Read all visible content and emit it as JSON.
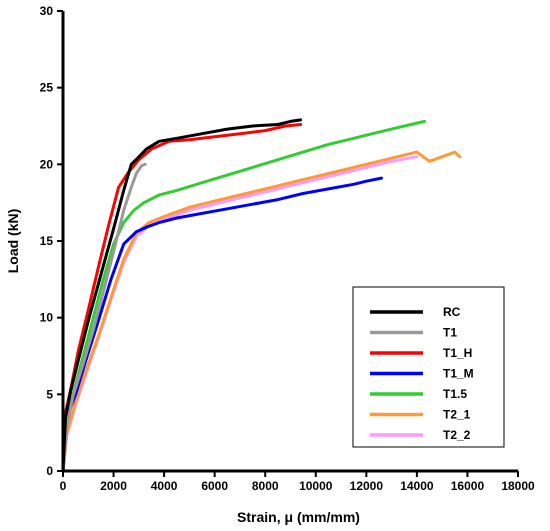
{
  "chart_data": {
    "type": "line",
    "title": "",
    "xlabel": "Strain, μ (mm/mm)",
    "ylabel": "Load (kN)",
    "xlim": [
      0,
      18000
    ],
    "ylim": [
      0,
      30
    ],
    "xticks": [
      0,
      2000,
      4000,
      6000,
      8000,
      10000,
      12000,
      14000,
      16000,
      18000
    ],
    "yticks": [
      0,
      5,
      10,
      15,
      20,
      25,
      30
    ],
    "grid": false,
    "legend_position": "bottom-right",
    "series": [
      {
        "name": "RC",
        "color": "#000000",
        "x": [
          0,
          100,
          300,
          600,
          1000,
          1500,
          2000,
          2400,
          2700,
          2950,
          3300,
          3800,
          4500,
          5500,
          6500,
          7500,
          8500,
          9000,
          9400
        ],
        "y": [
          0,
          3.5,
          5.2,
          7.2,
          9.8,
          12.8,
          15.8,
          18.3,
          20.0,
          20.4,
          21.0,
          21.5,
          21.7,
          22.0,
          22.3,
          22.5,
          22.6,
          22.8,
          22.9
        ]
      },
      {
        "name": "T1",
        "color": "#999999",
        "x": [
          0,
          150,
          400,
          800,
          1200,
          1600,
          2000,
          2400,
          2700,
          2900,
          3100,
          3250
        ],
        "y": [
          0,
          3.0,
          4.9,
          7.0,
          9.2,
          11.7,
          14.3,
          17.0,
          18.5,
          19.4,
          19.9,
          20.0
        ]
      },
      {
        "name": "T1_H",
        "color": "#ff0000",
        "x": [
          0,
          100,
          300,
          600,
          1000,
          1400,
          1800,
          2200,
          2600,
          3000,
          3500,
          4200,
          5000,
          6000,
          7000,
          8000,
          8800,
          9400
        ],
        "y": [
          0,
          3.8,
          5.3,
          7.8,
          10.5,
          13.3,
          16.0,
          18.5,
          19.5,
          20.3,
          21.0,
          21.5,
          21.6,
          21.8,
          22.0,
          22.2,
          22.5,
          22.6
        ]
      },
      {
        "name": "T1_M",
        "color": "#0000ff",
        "x": [
          0,
          150,
          500,
          900,
          1400,
          1900,
          2400,
          2900,
          3300,
          3800,
          4500,
          5500,
          6500,
          7500,
          8500,
          9500,
          10500,
          11500,
          12000,
          12600
        ],
        "y": [
          0,
          3.5,
          5.0,
          7.2,
          9.8,
          12.5,
          14.8,
          15.6,
          15.9,
          16.2,
          16.5,
          16.8,
          17.1,
          17.4,
          17.7,
          18.1,
          18.4,
          18.7,
          18.9,
          19.1
        ]
      },
      {
        "name": "T1.5",
        "color": "#33cc33",
        "x": [
          0,
          100,
          400,
          800,
          1200,
          1600,
          2000,
          2400,
          2800,
          3200,
          3800,
          4500,
          5500,
          6500,
          7500,
          8500,
          9500,
          10500,
          11500,
          12500,
          13500,
          14300
        ],
        "y": [
          0,
          3.2,
          5.0,
          7.5,
          10.0,
          12.5,
          14.8,
          16.2,
          17.0,
          17.5,
          18.0,
          18.3,
          18.8,
          19.3,
          19.8,
          20.3,
          20.8,
          21.3,
          21.7,
          22.1,
          22.5,
          22.8
        ]
      },
      {
        "name": "T2_1",
        "color": "#ff9933",
        "x": [
          0,
          150,
          500,
          900,
          1400,
          1900,
          2400,
          2900,
          3400,
          4000,
          5000,
          6000,
          7000,
          8000,
          9000,
          10000,
          11000,
          12000,
          13000,
          14000,
          14500,
          15000,
          15500,
          15700
        ],
        "y": [
          0,
          2.5,
          4.5,
          6.5,
          8.8,
          11.3,
          13.8,
          15.5,
          16.2,
          16.6,
          17.2,
          17.6,
          18.0,
          18.4,
          18.8,
          19.2,
          19.6,
          20.0,
          20.4,
          20.8,
          20.2,
          20.5,
          20.8,
          20.5
        ]
      },
      {
        "name": "T2_2",
        "color": "#ff99ff",
        "x": [
          0,
          150,
          500,
          900,
          1400,
          1900,
          2400,
          2900,
          3400,
          4000,
          5000,
          6000,
          7000,
          8000,
          9000,
          10000,
          11000,
          12000,
          13000,
          14000
        ],
        "y": [
          0,
          2.3,
          4.3,
          6.3,
          8.7,
          11.2,
          13.6,
          15.3,
          16.0,
          16.4,
          17.0,
          17.4,
          17.8,
          18.2,
          18.6,
          19.0,
          19.4,
          19.8,
          20.2,
          20.5
        ]
      }
    ]
  }
}
